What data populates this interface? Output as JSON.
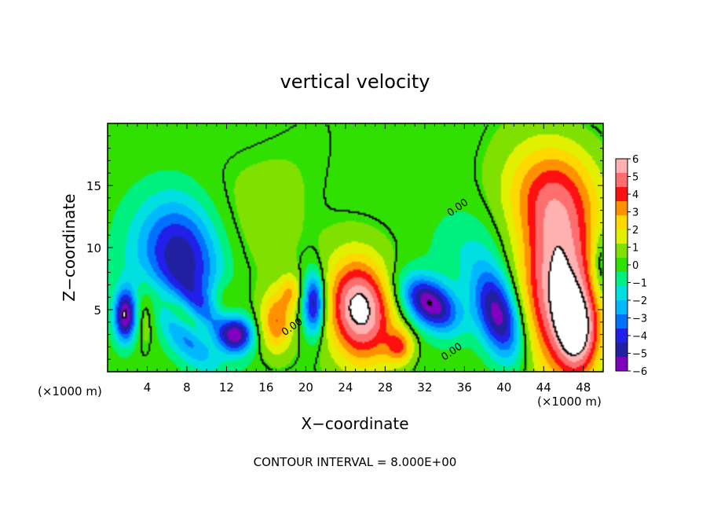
{
  "chart_data": {
    "type": "heatmap",
    "title": "vertical velocity",
    "xlabel": "X−coordinate",
    "ylabel": "Z−coordinate",
    "x_unit_left": "(×1000 m)",
    "x_unit_right": "(×1000 m)",
    "footer": "CONTOUR INTERVAL = 8.000E+00",
    "xlim": [
      0,
      50
    ],
    "ylim": [
      0,
      20
    ],
    "x_ticks": [
      4,
      8,
      12,
      16,
      20,
      24,
      28,
      32,
      36,
      40,
      44,
      48
    ],
    "y_ticks": [
      5,
      10,
      15
    ],
    "contour_labels": [
      {
        "x": 35.5,
        "y": 13.0,
        "text": "0.00"
      },
      {
        "x": 18.8,
        "y": 3.4,
        "text": "0.00"
      },
      {
        "x": 34.9,
        "y": 1.4,
        "text": "0.00"
      }
    ],
    "colorbar": {
      "min": -6,
      "max": 6,
      "tick_labels": [
        "6",
        "5",
        "4",
        "3",
        "2",
        "1",
        "0",
        "−1",
        "−2",
        "−3",
        "−4",
        "−5",
        "−6"
      ],
      "colors": [
        "#ffb0b0",
        "#ff6e6e",
        "#ff1010",
        "#ff9000",
        "#ffd800",
        "#e0f000",
        "#80e000",
        "#30e000",
        "#00f080",
        "#00e0e0",
        "#00b8ff",
        "#0070ff",
        "#2020e8",
        "#2020a0",
        "#8000c0"
      ]
    },
    "features": [
      {
        "x": 9.0,
        "y": 3.5,
        "sx": 1.6,
        "sy": 2.4,
        "amp": -5.5,
        "rot": 0.9
      },
      {
        "x": 8.2,
        "y": 9.0,
        "sx": 2.5,
        "sy": 3.5,
        "amp": -3.5,
        "rot": 0.4
      },
      {
        "x": 5.5,
        "y": 9.5,
        "sx": 3.0,
        "sy": 3.0,
        "amp": -2.0,
        "rot": 0.0
      },
      {
        "x": 8.5,
        "y": 4.0,
        "sx": 0.9,
        "sy": 2.4,
        "amp": 5.5,
        "rot": 0.9
      },
      {
        "x": 1.8,
        "y": 4.5,
        "sx": 0.8,
        "sy": 1.5,
        "amp": -6.0,
        "rot": 0.0
      },
      {
        "x": 3.8,
        "y": 4.8,
        "sx": 0.9,
        "sy": 1.8,
        "amp": 1.5,
        "rot": 0.0
      },
      {
        "x": 13.0,
        "y": 3.0,
        "sx": 1.2,
        "sy": 1.0,
        "amp": -5.0,
        "rot": 0.0
      },
      {
        "x": 11.5,
        "y": 5.5,
        "sx": 1.2,
        "sy": 1.3,
        "amp": 1.5,
        "rot": 0.0
      },
      {
        "x": 17.0,
        "y": 4.0,
        "sx": 1.2,
        "sy": 1.8,
        "amp": 3.5,
        "rot": 0.0
      },
      {
        "x": 20.8,
        "y": 5.5,
        "sx": 0.8,
        "sy": 1.8,
        "amp": -5.5,
        "rot": 0.0
      },
      {
        "x": 18.5,
        "y": 6.5,
        "sx": 0.8,
        "sy": 1.0,
        "amp": 2.0,
        "rot": 0.0
      },
      {
        "x": 25.5,
        "y": 5.0,
        "sx": 2.3,
        "sy": 3.0,
        "amp": 6.5,
        "rot": 0.25
      },
      {
        "x": 32.5,
        "y": 5.5,
        "sx": 2.2,
        "sy": 1.3,
        "amp": -6.0,
        "rot": -0.5
      },
      {
        "x": 29.5,
        "y": 2.0,
        "sx": 1.0,
        "sy": 1.0,
        "amp": 3.0,
        "rot": 0.0
      },
      {
        "x": 39.5,
        "y": 4.5,
        "sx": 1.5,
        "sy": 2.8,
        "amp": -6.0,
        "rot": 0.4
      },
      {
        "x": 45.5,
        "y": 7.0,
        "sx": 2.8,
        "sy": 5.0,
        "amp": 6.0,
        "rot": 0.0
      },
      {
        "x": 47.5,
        "y": 3.0,
        "sx": 1.5,
        "sy": 2.5,
        "amp": 4.5,
        "rot": 0.0
      },
      {
        "x": 44.5,
        "y": 14.5,
        "sx": 3.5,
        "sy": 3.0,
        "amp": 3.0,
        "rot": 0.0
      },
      {
        "x": 49.8,
        "y": 8.5,
        "sx": 0.8,
        "sy": 2.0,
        "amp": -2.0,
        "rot": 0.0
      },
      {
        "x": 36.0,
        "y": 10.0,
        "sx": 3.0,
        "sy": 2.5,
        "amp": -1.0,
        "rot": 0.0
      },
      {
        "x": 16.0,
        "y": 13.0,
        "sx": 5.0,
        "sy": 5.0,
        "amp": 0.6,
        "rot": 0.0
      }
    ]
  }
}
